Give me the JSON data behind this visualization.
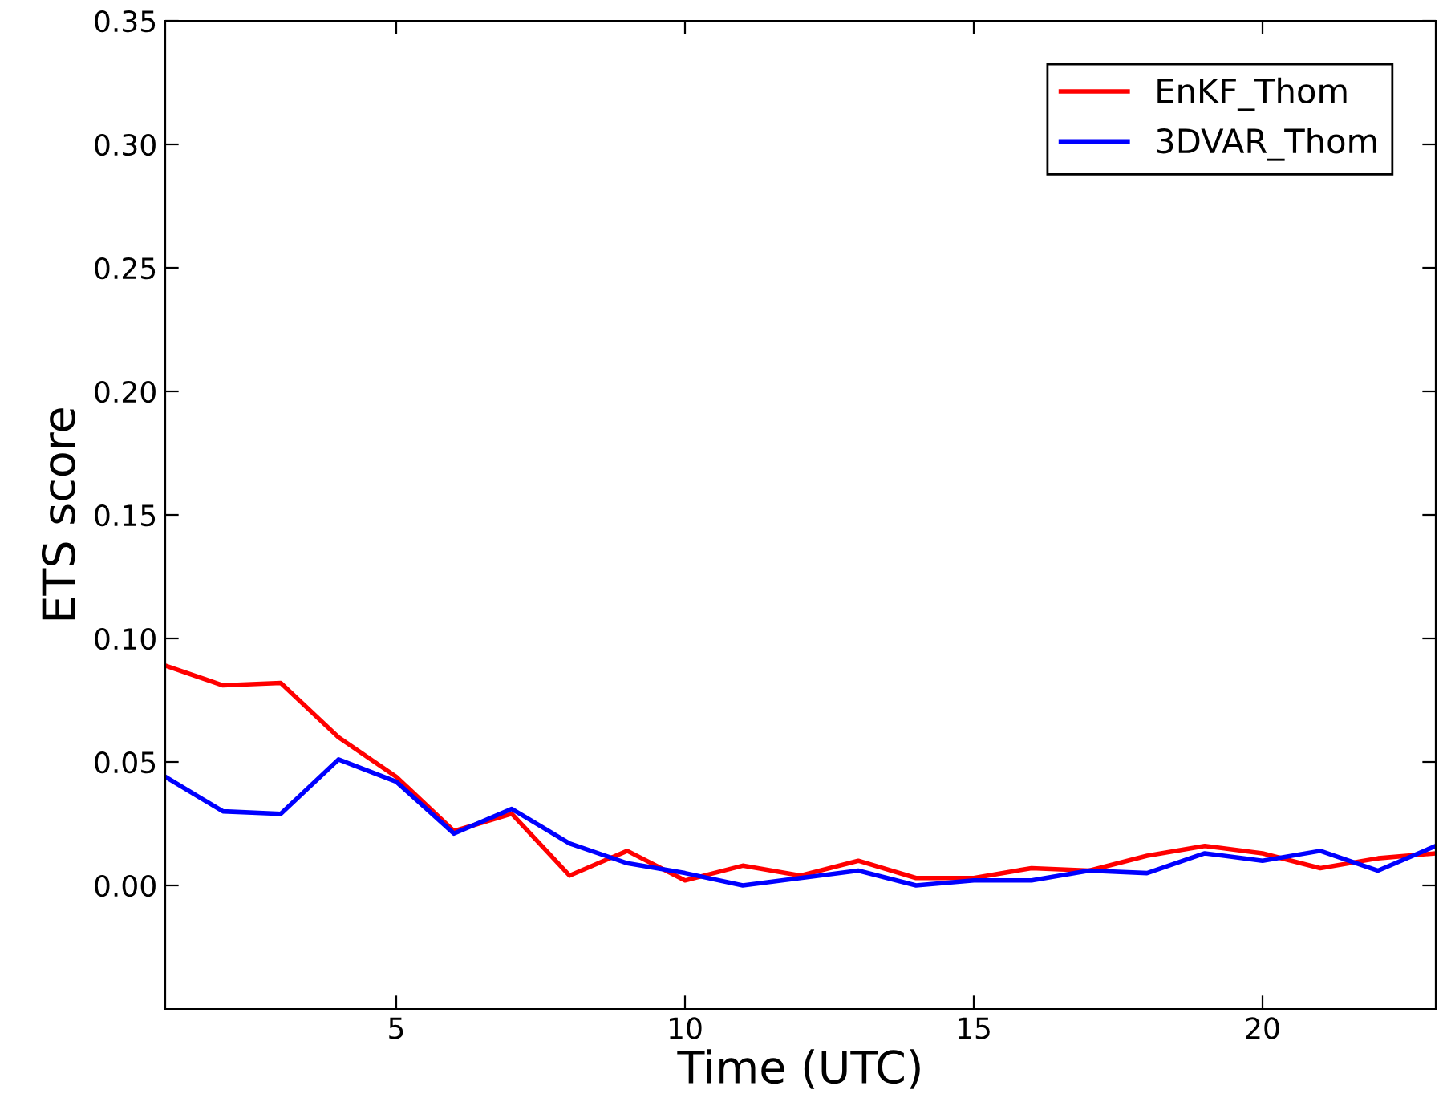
{
  "chart_data": {
    "type": "line",
    "xlabel": "Time (UTC)",
    "ylabel": "ETS score",
    "x": [
      1,
      2,
      3,
      4,
      5,
      6,
      7,
      8,
      9,
      10,
      11,
      12,
      13,
      14,
      15,
      16,
      17,
      18,
      19,
      20,
      21,
      22,
      23
    ],
    "series": [
      {
        "name": "EnKF_Thom",
        "color": "#ff0000",
        "values": [
          0.089,
          0.081,
          0.082,
          0.06,
          0.044,
          0.022,
          0.029,
          0.004,
          0.014,
          0.002,
          0.008,
          0.004,
          0.01,
          0.003,
          0.003,
          0.007,
          0.006,
          0.012,
          0.016,
          0.013,
          0.007,
          0.011,
          0.013
        ]
      },
      {
        "name": "3DVAR_Thom",
        "color": "#0000ff",
        "values": [
          0.044,
          0.03,
          0.029,
          0.051,
          0.042,
          0.021,
          0.031,
          0.017,
          0.009,
          0.005,
          0.0,
          0.003,
          0.006,
          0.0,
          0.002,
          0.002,
          0.006,
          0.005,
          0.013,
          0.01,
          0.014,
          0.006,
          0.016
        ]
      }
    ],
    "xlim": [
      1,
      23
    ],
    "xticks": [
      5,
      10,
      15,
      20
    ],
    "ylim": [
      -0.05,
      0.35
    ],
    "yticks": [
      {
        "value": 0,
        "label": "0.00"
      },
      {
        "value": 0.05,
        "label": "0.05"
      },
      {
        "value": 0.1,
        "label": "0.10"
      },
      {
        "value": 0.15,
        "label": "0.15"
      },
      {
        "value": 0.2,
        "label": "0.20"
      },
      {
        "value": 0.25,
        "label": "0.25"
      },
      {
        "value": 0.3,
        "label": "0.30"
      },
      {
        "value": 0.35,
        "label": "0.35"
      }
    ],
    "grid": false,
    "legend": "top right"
  }
}
